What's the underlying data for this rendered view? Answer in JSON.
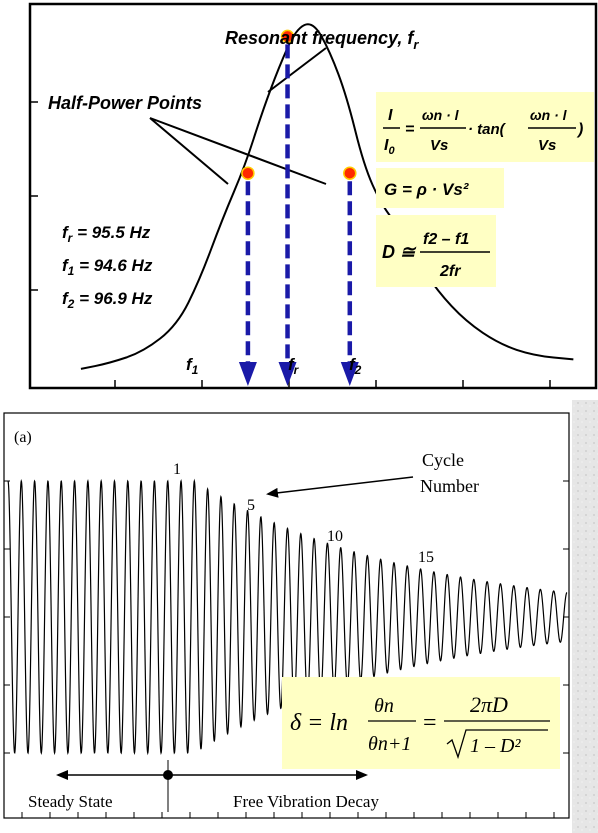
{
  "chart_data": [
    {
      "type": "line",
      "title": "",
      "xlabel": "",
      "ylabel": "",
      "grid": false,
      "annotations": {
        "resonant_label": "Resonant frequency, f",
        "resonant_sub": "r",
        "half_power_label": "Half-Power Points",
        "fr_prefix": "f",
        "fr_sub": "r",
        "fr_value": " = 95.5 Hz",
        "f1_prefix": "f",
        "f1_sub": "1",
        "f1_value": " = 94.6 Hz",
        "f2_prefix": "f",
        "f2_sub": "2",
        "f2_value": " = 96.9 Hz",
        "marker_f1": "f",
        "marker_f1_sub": "1",
        "marker_fr": "f",
        "marker_fr_sub": "r",
        "marker_f2": "f",
        "marker_f2_sub": "2"
      },
      "formulas": {
        "current_lhs_num": "I",
        "current_lhs_den": "I",
        "current_lhs_den_sub": "0",
        "current_rhs_num": "ωn · l",
        "current_rhs_den": "Vs",
        "current_tan": "· tan(",
        "current_close": ")",
        "shear": "G = ρ · Vs²",
        "damping_lhs": "D ≅",
        "damping_num": "f2 – f1",
        "damping_den": "2fr"
      },
      "series": [
        {
          "points": [
            [
              0.09,
              0.045
            ],
            [
              0.14,
              0.06
            ],
            [
              0.2,
              0.09
            ],
            [
              0.26,
              0.16
            ],
            [
              0.3,
              0.28
            ],
            [
              0.34,
              0.44
            ],
            [
              0.38,
              0.58
            ],
            [
              0.41,
              0.72
            ],
            [
              0.44,
              0.84
            ],
            [
              0.47,
              0.94
            ],
            [
              0.5,
              0.96
            ],
            [
              0.53,
              0.88
            ],
            [
              0.56,
              0.76
            ],
            [
              0.59,
              0.58
            ],
            [
              0.62,
              0.48
            ],
            [
              0.65,
              0.42
            ],
            [
              0.68,
              0.34
            ],
            [
              0.72,
              0.25
            ],
            [
              0.77,
              0.17
            ],
            [
              0.83,
              0.11
            ],
            [
              0.89,
              0.08
            ],
            [
              0.96,
              0.07
            ]
          ],
          "color": "#000000"
        }
      ],
      "markers": [
        {
          "x": 0.385,
          "y": 0.56,
          "color": "#ff2a00"
        },
        {
          "x": 0.455,
          "y": 0.92,
          "color": "#ff2a00"
        },
        {
          "x": 0.565,
          "y": 0.56,
          "color": "#ff2a00"
        }
      ],
      "colors": {
        "arrow": "#1a1aa8",
        "marker": "#ff2a00",
        "formula_bg": "#ffffc4"
      }
    },
    {
      "type": "line",
      "title": "",
      "panel_label": "(a)",
      "xlabel": "",
      "ylabel": "",
      "grid": false,
      "annotations": {
        "cycle_label_line1": "Cycle",
        "cycle_label_line2": "Number",
        "cycle_1": "1",
        "cycle_5": "5",
        "cycle_10": "10",
        "cycle_15": "15",
        "steady_state": "Steady State",
        "free_decay": "Free Vibration Decay"
      },
      "formula": {
        "delta": "δ = ln",
        "theta_num": "θn",
        "theta_den": "θn+1",
        "equals": "=",
        "rhs_num": "2πD",
        "rhs_den": "1 – D²"
      },
      "signal": {
        "steady_cycles": 14,
        "decay_cycles": 28,
        "steady_amplitude": 1.0,
        "final_amplitude": 0.18
      },
      "colors": {
        "formula_bg": "#ffffc4"
      }
    }
  ]
}
